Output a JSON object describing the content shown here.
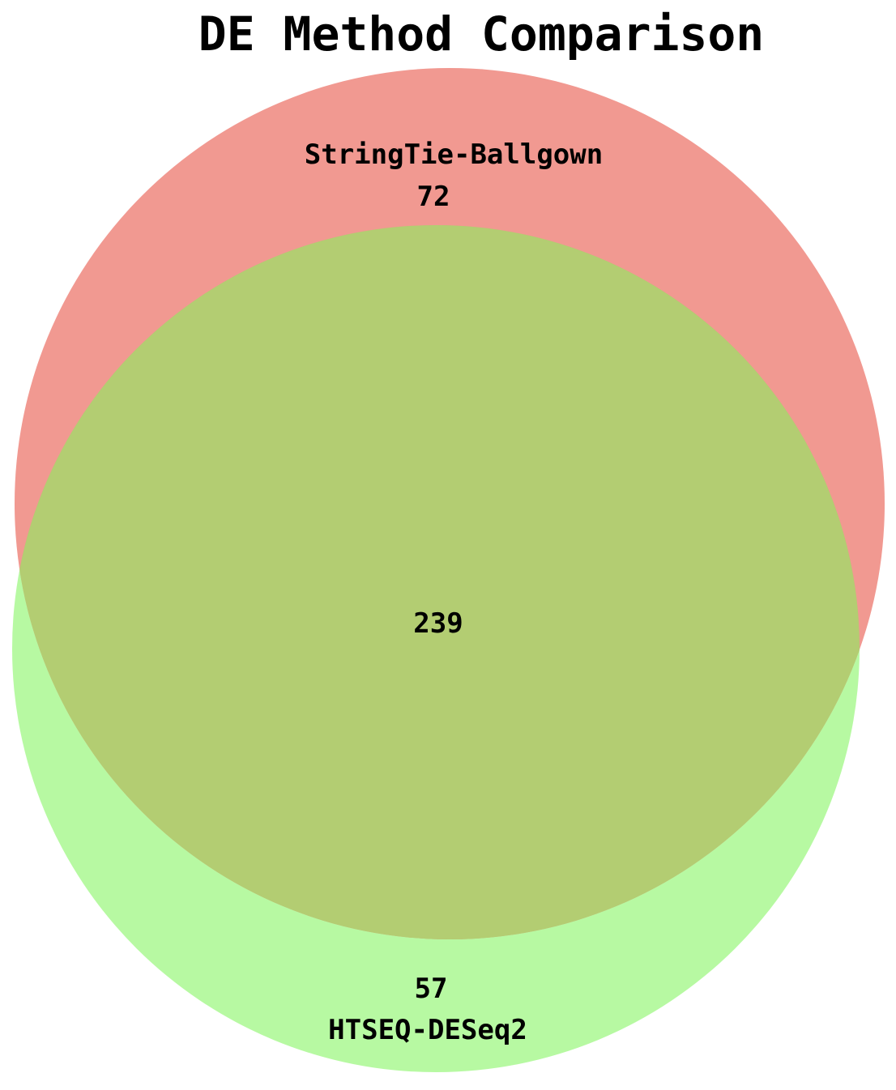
{
  "title": "DE Method Comparison",
  "sets": [
    {
      "key": "stringtie",
      "name": "StringTie-Ballgown",
      "only_count": "72",
      "color": "#ee7f76"
    },
    {
      "key": "htseq",
      "name": "HTSEQ-DESeq2",
      "only_count": "57",
      "color": "#98f77a"
    }
  ],
  "intersection": {
    "count": "239",
    "color": "#b3cd72"
  },
  "background": "#ffffff"
}
